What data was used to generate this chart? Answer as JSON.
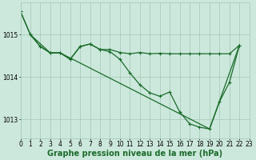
{
  "background_color": "#cce8dc",
  "grid_color": "#aaccbb",
  "line_color": "#1a6b2a",
  "xlabel": "Graphe pression niveau de la mer (hPa)",
  "xlim": [
    0,
    23
  ],
  "ylim": [
    1012.55,
    1015.75
  ],
  "yticks": [
    1013,
    1014,
    1015
  ],
  "xticks": [
    0,
    1,
    2,
    3,
    4,
    5,
    6,
    7,
    8,
    9,
    10,
    11,
    12,
    13,
    14,
    15,
    16,
    17,
    18,
    19,
    20,
    21,
    22,
    23
  ],
  "series1_x": [
    0,
    1,
    2,
    3,
    4,
    5,
    6,
    7,
    8,
    9,
    10,
    11,
    12,
    13,
    14,
    15,
    16,
    17,
    18,
    19,
    20,
    21,
    22
  ],
  "series1_y": [
    1015.55,
    1015.0,
    1014.72,
    1014.57,
    1014.57,
    1014.42,
    1014.72,
    1014.78,
    1014.65,
    1014.65,
    1014.58,
    1014.55,
    1014.58,
    1014.55,
    1014.56,
    1014.55,
    1014.55,
    1014.55,
    1014.55,
    1014.55,
    1014.55,
    1014.55,
    1014.75
  ],
  "series2_x": [
    0,
    1,
    2,
    3,
    4,
    5,
    6,
    7,
    8,
    9,
    10,
    11,
    12,
    13,
    14,
    15,
    16,
    17,
    18,
    19,
    20,
    21,
    22
  ],
  "series2_y": [
    1015.55,
    1015.0,
    1014.72,
    1014.57,
    1014.57,
    1014.42,
    1014.72,
    1014.78,
    1014.65,
    1014.6,
    1014.42,
    1014.1,
    1013.82,
    1013.63,
    1013.55,
    1013.65,
    1013.18,
    1012.9,
    1012.82,
    1012.78,
    1013.42,
    1013.88,
    1014.75
  ],
  "series3_x": [
    1,
    3,
    4,
    19,
    22
  ],
  "series3_y": [
    1015.0,
    1014.57,
    1014.57,
    1012.78,
    1014.75
  ],
  "xlabel_fontsize": 7,
  "tick_fontsize": 5.5,
  "linewidth": 0.9,
  "markersize": 2.5
}
